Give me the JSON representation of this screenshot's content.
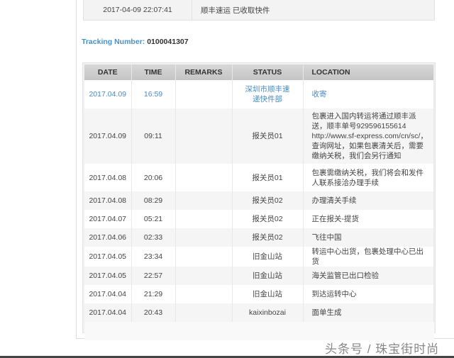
{
  "previous": {
    "datetime": "2017-04-09 22:07:41",
    "message": "顺丰速运 已收取快件"
  },
  "tracking": {
    "label": "Tracking Number:",
    "number": "0100041307"
  },
  "table": {
    "headers": [
      "DATE",
      "TIME",
      "REMARKS",
      "STATUS",
      "LOCATION"
    ],
    "rows": [
      {
        "date": "2017.04.09",
        "time": "16:59",
        "remarks": "",
        "status": "深圳市顺丰速递快件部",
        "location": "收寄"
      },
      {
        "date": "2017.04.09",
        "time": "09:11",
        "remarks": "",
        "status": "报关员01",
        "location": "包裹进入国内转运将通过顺丰派送，顺丰单号929596155614 http://www.sf-express.com/cn/sc/，查询网址，如果包裹清关后，需要缴纳关税，我们会另行通知"
      },
      {
        "date": "2017.04.08",
        "time": "20:06",
        "remarks": "",
        "status": "报关员01",
        "location": "包裹需缴纳关税，我们将会和发件人联系接洽办理手续"
      },
      {
        "date": "2017.04.08",
        "time": "08:29",
        "remarks": "",
        "status": "报关员02",
        "location": "办理清关手续"
      },
      {
        "date": "2017.04.07",
        "time": "05:21",
        "remarks": "",
        "status": "报关员02",
        "location": "正在报关-提货"
      },
      {
        "date": "2017.04.06",
        "time": "02:33",
        "remarks": "",
        "status": "报关员02",
        "location": "飞往中国"
      },
      {
        "date": "2017.04.05",
        "time": "23:34",
        "remarks": "",
        "status": "旧金山站",
        "location": "转运中心出货，包裹处理中心已出货"
      },
      {
        "date": "2017.04.05",
        "time": "22:57",
        "remarks": "",
        "status": "旧金山站",
        "location": "海关监管已出口检验"
      },
      {
        "date": "2017.04.04",
        "time": "21:29",
        "remarks": "",
        "status": "旧金山站",
        "location": "到达运转中心"
      },
      {
        "date": "2017.04.04",
        "time": "20:43",
        "remarks": "",
        "status": "kaixinbozai",
        "location": "面单生成"
      }
    ]
  },
  "watermark": "头条号 / 珠宝街时尚",
  "colors": {
    "link": "#4a8ac4",
    "header": "#cfcfcf"
  }
}
